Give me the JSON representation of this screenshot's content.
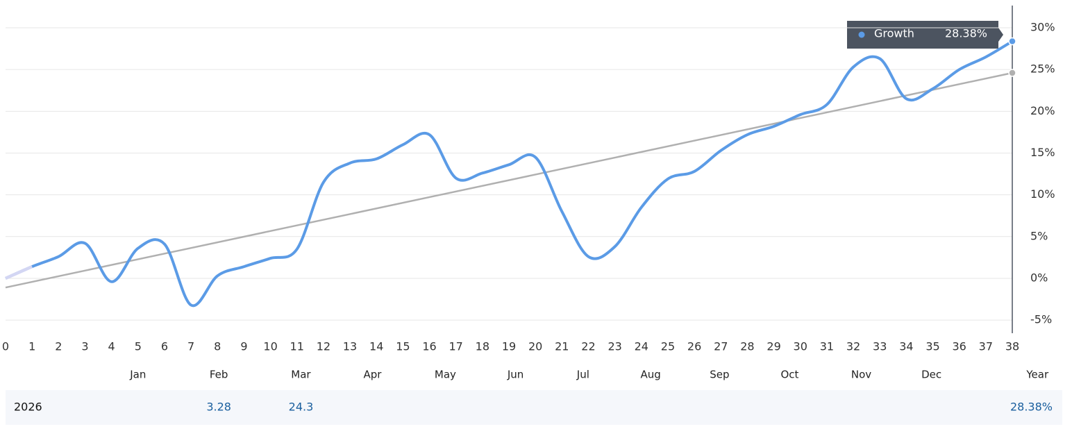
{
  "chart_data": {
    "type": "line",
    "x": [
      0,
      1,
      2,
      3,
      4,
      5,
      6,
      7,
      8,
      9,
      10,
      11,
      12,
      13,
      14,
      15,
      16,
      17,
      18,
      19,
      20,
      21,
      22,
      23,
      24,
      25,
      26,
      27,
      28,
      29,
      30,
      31,
      32,
      33,
      34,
      35,
      36,
      37,
      38
    ],
    "series": [
      {
        "name": "Growth",
        "color": "#5b9be6",
        "values": [
          0,
          1.4,
          2.6,
          4.2,
          -0.4,
          3.6,
          4.1,
          -3.2,
          0.3,
          1.4,
          2.4,
          3.5,
          11.5,
          13.8,
          14.3,
          16.0,
          17.2,
          12.0,
          12.6,
          13.6,
          14.5,
          8.0,
          2.6,
          3.8,
          8.5,
          11.9,
          12.8,
          15.3,
          17.2,
          18.2,
          19.6,
          20.8,
          25.3,
          26.3,
          21.5,
          22.7,
          25.0,
          26.5,
          28.38
        ]
      }
    ],
    "faded_segment_color": "#d3d6f3",
    "trend": {
      "color": "#b0b0b0",
      "x": [
        0,
        38
      ],
      "values": [
        -1.1,
        24.6
      ]
    },
    "xlim": [
      0,
      38
    ],
    "xticks": [
      0,
      1,
      2,
      3,
      4,
      5,
      6,
      7,
      8,
      9,
      10,
      11,
      12,
      13,
      14,
      15,
      16,
      17,
      18,
      19,
      20,
      21,
      22,
      23,
      24,
      25,
      26,
      27,
      28,
      29,
      30,
      31,
      32,
      33,
      34,
      35,
      36,
      37,
      38
    ],
    "ylim": [
      -6.57,
      32.66
    ],
    "yticks": [
      {
        "value": -5,
        "label": "-5%"
      },
      {
        "value": 0,
        "label": "0%"
      },
      {
        "value": 5,
        "label": "5%"
      },
      {
        "value": 10,
        "label": "10%"
      },
      {
        "value": 15,
        "label": "15%"
      },
      {
        "value": 20,
        "label": "20%"
      },
      {
        "value": 25,
        "label": "25%"
      },
      {
        "value": 30,
        "label": "30%"
      }
    ],
    "grid": true,
    "period_labels": [
      {
        "label": "Jan",
        "x": 5
      },
      {
        "label": "Feb",
        "x": 8.05
      },
      {
        "label": "Mar",
        "x": 11.15
      },
      {
        "label": "Apr",
        "x": 13.85
      },
      {
        "label": "May",
        "x": 16.6
      },
      {
        "label": "Jun",
        "x": 19.25
      },
      {
        "label": "Jul",
        "x": 21.8
      },
      {
        "label": "Aug",
        "x": 24.35
      },
      {
        "label": "Sep",
        "x": 26.95
      },
      {
        "label": "Oct",
        "x": 29.6
      },
      {
        "label": "Nov",
        "x": 32.3
      },
      {
        "label": "Dec",
        "x": 34.95
      },
      {
        "label": "Year",
        "x": 38.95
      }
    ],
    "tooltip": {
      "value": "28.38%"
    },
    "table": {
      "row_label": "2026",
      "cells": [
        {
          "x": 8.05,
          "value": 3.28
        },
        {
          "x": 11.15,
          "value": 24.3
        }
      ],
      "total": "28.38%"
    }
  }
}
